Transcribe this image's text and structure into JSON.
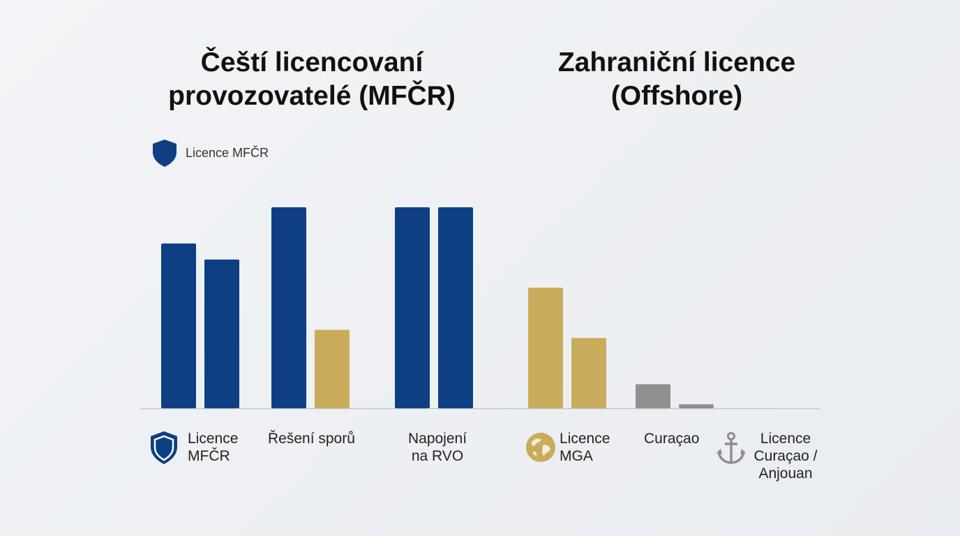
{
  "titles": {
    "left_line1": "Čeští licencovaní",
    "left_line2": "provozovatelé (MFČR)",
    "right_line1": "Zahraniční licence",
    "right_line2": "(Offshore)"
  },
  "legend": {
    "label": "Licence MFČR",
    "icon": "shield-icon",
    "color": "#0d3f82"
  },
  "colors": {
    "czech": "#0d3f82",
    "mga": "#c9ab5c",
    "curacao": "#909090",
    "axis": "#c4c7cc"
  },
  "categories": [
    {
      "line1": "Licence",
      "line2": "MFČR",
      "icon": "shield-icon"
    },
    {
      "line1": "Řešení sporů",
      "line2": ""
    },
    {
      "line1": "Napojení",
      "line2": "na RVO"
    },
    {
      "line1": "Licence",
      "line2": "MGA",
      "icon": "globe-icon"
    },
    {
      "line1": "Curaçao",
      "line2": ""
    },
    {
      "line1": "Licence",
      "line2": "Curaçao /",
      "line3": "Anjouan",
      "icon": "anchor-icon"
    }
  ],
  "chart_data": {
    "type": "bar",
    "title": "",
    "xlabel": "",
    "ylabel": "",
    "ylim": [
      0,
      100
    ],
    "grid": false,
    "groups": [
      {
        "category": "Licence MFČR",
        "values": [
          82,
          74
        ],
        "color_key": "czech"
      },
      {
        "category": "Řešení sporů",
        "values": [
          100,
          39
        ],
        "color_key": [
          "czech",
          "mga"
        ]
      },
      {
        "category": "Napojení na RVO",
        "values": [
          100,
          100
        ],
        "color_key": "czech"
      },
      {
        "category": "Licence MGA",
        "values": [
          60,
          35
        ],
        "color_key": "mga"
      },
      {
        "category": "Curaçao",
        "values": [
          12,
          2
        ],
        "color_key": "curacao"
      },
      {
        "category": "Licence Curaçao / Anjouan",
        "values": [],
        "color_key": "curacao"
      }
    ]
  }
}
